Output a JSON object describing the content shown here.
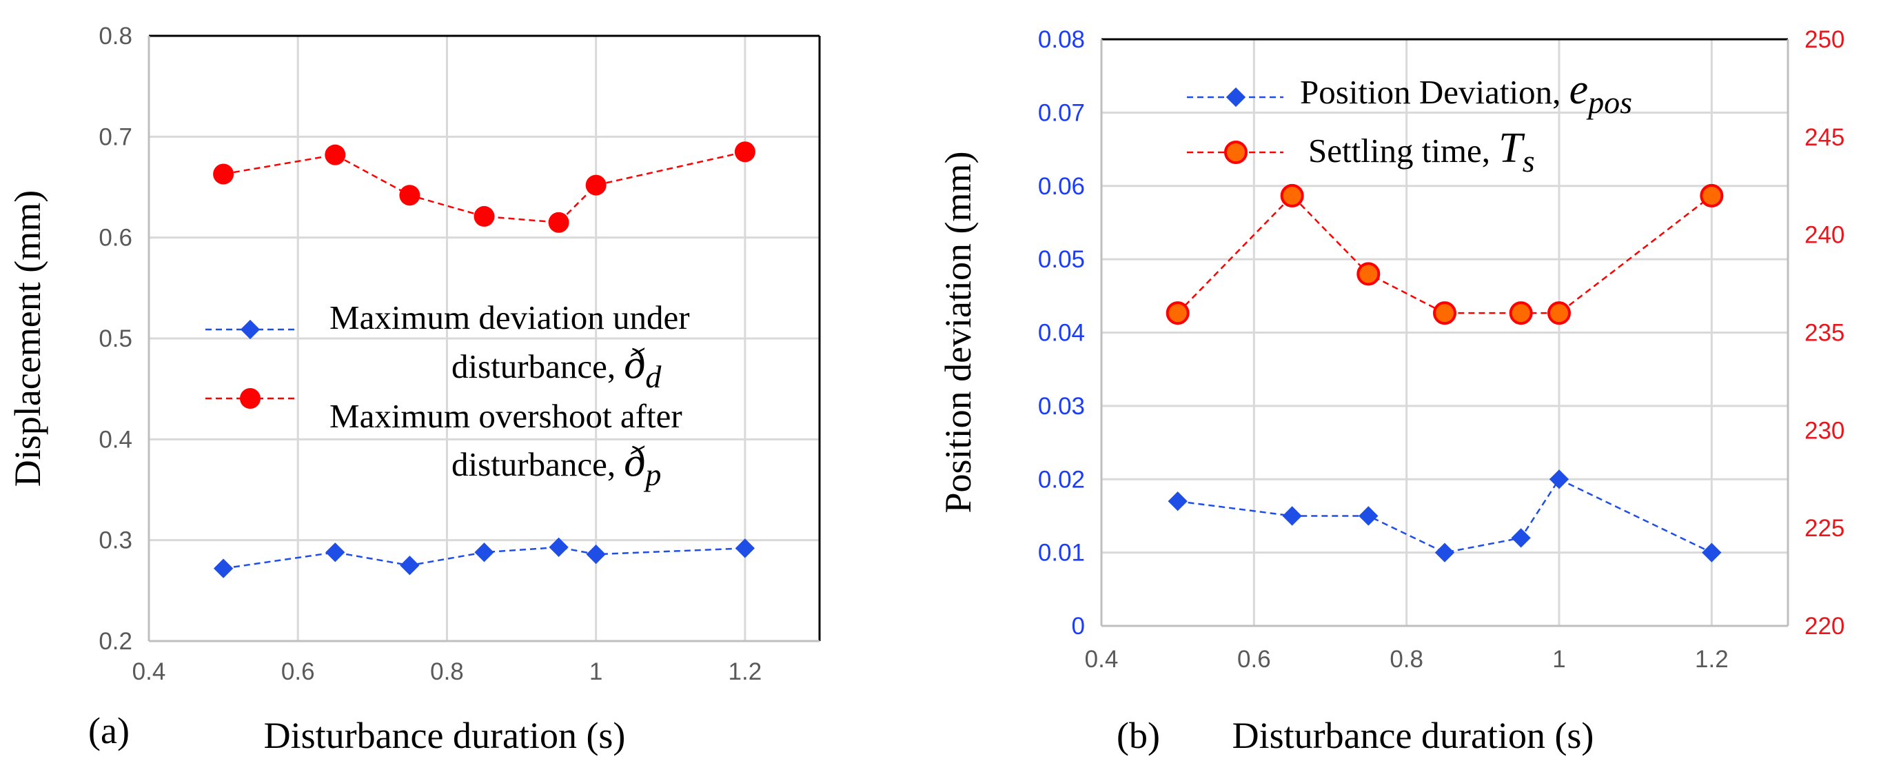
{
  "chart_data": [
    {
      "type": "line",
      "panel_label": "(a)",
      "xlabel": "Disturbance duration (s)",
      "ylabel": "Displacement (mm)",
      "xlim": [
        0.4,
        1.3
      ],
      "ylim": [
        0.2,
        0.8
      ],
      "x_ticks": [
        "0.4",
        "0.6",
        "0.8",
        "1",
        "1.2"
      ],
      "y_ticks": [
        "0.2",
        "0.3",
        "0.4",
        "0.5",
        "0.6",
        "0.7",
        "0.8"
      ],
      "grid": true,
      "legend_position": "center-right",
      "x": [
        0.5,
        0.65,
        0.75,
        0.85,
        0.95,
        1.0,
        1.2
      ],
      "series": [
        {
          "name": "Maximum deviation under disturbance, ",
          "name_line1": "Maximum deviation under",
          "name_line2": "disturbance, ",
          "symbol": "ð",
          "subscript": "d",
          "color": "#1f4ee6",
          "marker": "diamond",
          "values": [
            0.272,
            0.288,
            0.275,
            0.288,
            0.293,
            0.286,
            0.292
          ]
        },
        {
          "name": "Maximum overshoot after disturbance, ",
          "name_line1": "Maximum overshoot after",
          "name_line2": "disturbance, ",
          "symbol": "ð",
          "subscript": "p",
          "color": "#ff0000",
          "marker": "circle",
          "values": [
            0.663,
            0.682,
            0.642,
            0.621,
            0.615,
            0.652,
            0.685
          ]
        }
      ]
    },
    {
      "type": "line",
      "panel_label": "(b)",
      "xlabel": "Disturbance duration (s)",
      "ylabel": "Position deviation (mm)",
      "xlim": [
        0.4,
        1.3
      ],
      "ylim_left": [
        0,
        0.08
      ],
      "ylim_right": [
        220,
        250
      ],
      "x_ticks": [
        "0.4",
        "0.6",
        "0.8",
        "1",
        "1.2"
      ],
      "y_ticks_left": [
        "0",
        "0.01",
        "0.02",
        "0.03",
        "0.04",
        "0.05",
        "0.06",
        "0.07",
        "0.08"
      ],
      "y_ticks_right": [
        "220",
        "225",
        "230",
        "235",
        "240",
        "245",
        "250"
      ],
      "grid": true,
      "legend_position": "top-center",
      "x": [
        0.5,
        0.65,
        0.75,
        0.85,
        0.95,
        1.0,
        1.2
      ],
      "series": [
        {
          "name": "Position Deviation, ",
          "symbol": "e",
          "subscript": "pos",
          "color": "#1f4ee6",
          "marker": "diamond",
          "axis": "left",
          "values": [
            0.017,
            0.015,
            0.015,
            0.01,
            0.012,
            0.02,
            0.01
          ]
        },
        {
          "name": "Settling time, ",
          "symbol": "T",
          "subscript": "s",
          "color": "#ff0000",
          "marker": "circle-orange",
          "axis": "right",
          "values": [
            236,
            242,
            238,
            236,
            236,
            236,
            242
          ]
        }
      ]
    }
  ]
}
